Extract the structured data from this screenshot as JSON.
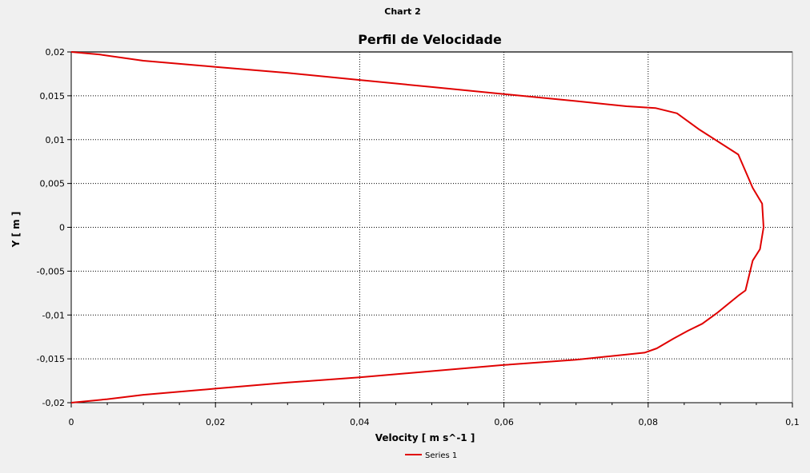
{
  "window": {
    "title": "Chart 2"
  },
  "colors": {
    "series": "#e00000",
    "plot_background": "#ffffff",
    "page_background": "#f0f0f0",
    "grid": "#000000"
  },
  "chart_data": {
    "type": "line",
    "title": "Perfil de Velocidade",
    "xlabel": "Velocity [ m s^-1 ]",
    "ylabel": "Y [ m ]",
    "xlim": [
      0,
      0.1
    ],
    "ylim": [
      -0.02,
      0.02
    ],
    "x_ticks": [
      "0",
      "0,02",
      "0,04",
      "0,06",
      "0,08",
      "0,1"
    ],
    "y_ticks": [
      "0,02",
      "0,015",
      "0,01",
      "0,005",
      "0",
      "-0,005",
      "-0,01",
      "-0,015",
      "-0,02"
    ],
    "grid": true,
    "legend_position": "bottom-center",
    "series": [
      {
        "name": "Series 1",
        "x": [
          0.0,
          0.004,
          0.01,
          0.02,
          0.03,
          0.04,
          0.05,
          0.06,
          0.07,
          0.077,
          0.081,
          0.084,
          0.087,
          0.0925,
          0.0945,
          0.0958,
          0.096,
          0.0955,
          0.0945,
          0.0935,
          0.0925,
          0.0895,
          0.0875,
          0.0855,
          0.0835,
          0.0812,
          0.0795,
          0.07,
          0.06,
          0.05,
          0.04,
          0.03,
          0.02,
          0.01,
          0.005,
          0.0
        ],
        "y": [
          0.02,
          0.0197,
          0.019,
          0.0183,
          0.0176,
          0.0168,
          0.016,
          0.0152,
          0.0144,
          0.0138,
          0.0136,
          0.013,
          0.0112,
          0.0083,
          0.0045,
          0.0027,
          0.0,
          -0.0025,
          -0.0038,
          -0.0072,
          -0.0078,
          -0.0098,
          -0.011,
          -0.0118,
          -0.0127,
          -0.0138,
          -0.0143,
          -0.0151,
          -0.0157,
          -0.0164,
          -0.0171,
          -0.0177,
          -0.0184,
          -0.0191,
          -0.0196,
          -0.02
        ]
      }
    ]
  }
}
